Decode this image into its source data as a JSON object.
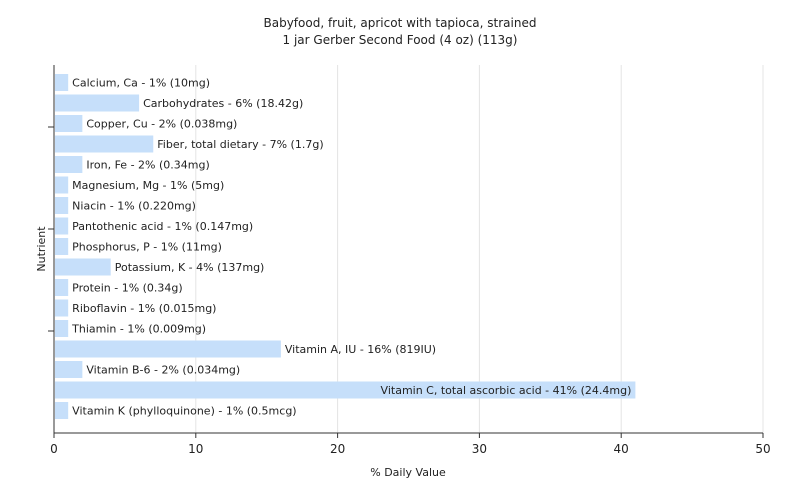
{
  "chart_data": {
    "type": "bar",
    "orientation": "horizontal",
    "title": "Babyfood, fruit, apricot with tapioca, strained",
    "subtitle": "1 jar Gerber Second Food (4 oz) (113g)",
    "xlabel": "% Daily Value",
    "ylabel": "Nutrient",
    "xlim": [
      0,
      50
    ],
    "xticks": [
      "0",
      "10",
      "20",
      "30",
      "40",
      "50"
    ],
    "grid": true,
    "bar_color": "#c6dffa",
    "categories": [
      "Calcium, Ca",
      "Carbohydrates",
      "Copper, Cu",
      "Fiber, total dietary",
      "Iron, Fe",
      "Magnesium, Mg",
      "Niacin",
      "Pantothenic acid",
      "Phosphorus, P",
      "Potassium, K",
      "Protein",
      "Riboflavin",
      "Thiamin",
      "Vitamin A, IU",
      "Vitamin B-6",
      "Vitamin C, total ascorbic acid",
      "Vitamin K (phylloquinone)"
    ],
    "values": [
      1,
      6,
      2,
      7,
      2,
      1,
      1,
      1,
      1,
      4,
      1,
      1,
      1,
      16,
      2,
      41,
      1
    ],
    "labels": [
      "Calcium, Ca - 1% (10mg)",
      "Carbohydrates - 6% (18.42g)",
      "Copper, Cu - 2% (0.038mg)",
      "Fiber, total dietary - 7% (1.7g)",
      "Iron, Fe - 2% (0.34mg)",
      "Magnesium, Mg - 1% (5mg)",
      "Niacin - 1% (0.220mg)",
      "Pantothenic acid - 1% (0.147mg)",
      "Phosphorus, P - 1% (11mg)",
      "Potassium, K - 4% (137mg)",
      "Protein - 1% (0.34g)",
      "Riboflavin - 1% (0.015mg)",
      "Thiamin - 1% (0.009mg)",
      "Vitamin A, IU - 16% (819IU)",
      "Vitamin B-6 - 2% (0.034mg)",
      "Vitamin C, total ascorbic acid - 41% (24.4mg)",
      "Vitamin K (phylloquinone) - 1% (0.5mcg)"
    ]
  }
}
